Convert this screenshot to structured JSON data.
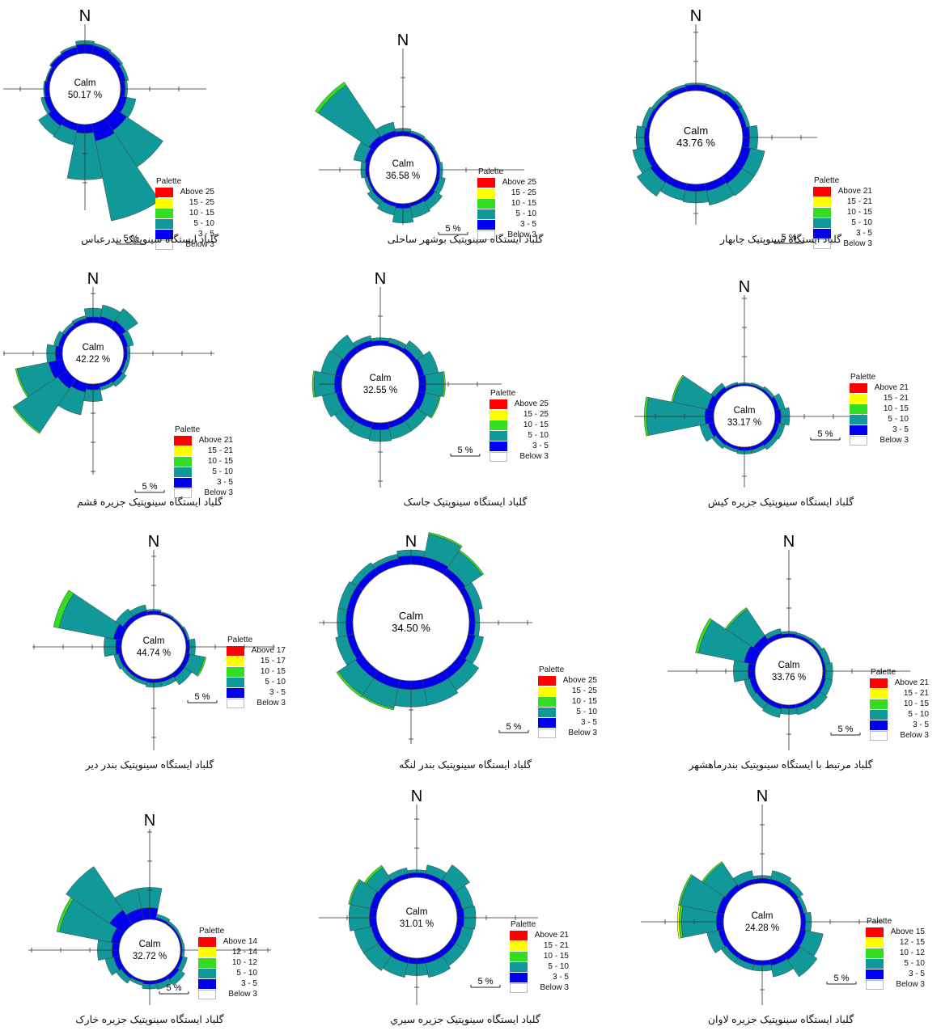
{
  "colors": {
    "above": "#ff0000",
    "band4": "#ffff00",
    "band3": "#33dd22",
    "band2": "#119999",
    "band1": "#0000ee",
    "below": "#ffffff",
    "outline": "#444444"
  },
  "common": {
    "north_label": "N",
    "calm_label": "Calm",
    "palette_label": "Palette",
    "scale_label": "5 %"
  },
  "chart_data": [
    {
      "type": "wind-rose",
      "station": "bandar-abbas",
      "caption": "گلباد ایستگاه سینوپتیک بندرعباس",
      "calm_text": "50.17 %",
      "calm_percent": 50.17,
      "legend": [
        "Above 25",
        "15 - 25",
        "10 - 15",
        "5 - 10",
        "3 - 5",
        "Below 3"
      ],
      "sectors_percent": [
        [
          1.6,
          0.6
        ],
        [
          1.5,
          0.4
        ],
        [
          1.3,
          0.4
        ],
        [
          1.0,
          0.5
        ],
        [
          0.8,
          0.4
        ],
        [
          1.2,
          1.6
        ],
        [
          2.5,
          7.5
        ],
        [
          3.0,
          14.0
        ],
        [
          1.5,
          8.0
        ],
        [
          1.2,
          2.5
        ],
        [
          1.5,
          2.0
        ],
        [
          1.0,
          0.6
        ],
        [
          0.8,
          0.2
        ],
        [
          0.6,
          0.2
        ],
        [
          1.0,
          0.2
        ],
        [
          1.2,
          0.3
        ]
      ]
    },
    {
      "type": "wind-rose",
      "station": "bushehr-coastal",
      "caption": "گلباد ایستگاه سینوپتیک بوشهر ساحلی",
      "calm_text": "36.58 %",
      "calm_percent": 36.58,
      "legend": [
        "Above 25",
        "15 - 25",
        "10 - 15",
        "5 - 10",
        "3 - 5",
        "Below 3"
      ],
      "sectors_percent": [
        [
          0.8,
          0.5
        ],
        [
          0.6,
          0.4
        ],
        [
          0.5,
          0.3
        ],
        [
          0.4,
          0.3
        ],
        [
          0.5,
          0.5
        ],
        [
          0.6,
          1.0
        ],
        [
          0.8,
          1.5
        ],
        [
          0.6,
          2.0
        ],
        [
          0.8,
          2.5
        ],
        [
          0.6,
          1.5
        ],
        [
          0.5,
          1.0
        ],
        [
          0.4,
          0.5
        ],
        [
          0.6,
          0.8
        ],
        [
          0.8,
          2.0
        ],
        [
          1.2,
          10.5,
          0.6
        ],
        [
          1.0,
          1.5
        ]
      ]
    },
    {
      "type": "wind-rose",
      "station": "chabahar",
      "caption": "گلباد ایستگاه سینوپتیک چابهار",
      "calm_text": "43.76 %",
      "calm_percent": 43.76,
      "legend": [
        "Above 21",
        "15 - 21",
        "10 - 15",
        "5 - 10",
        "3 - 5",
        "Below 3"
      ],
      "sectors_percent": [
        [
          1.0,
          0.3
        ],
        [
          0.8,
          0.5
        ],
        [
          1.0,
          0.5
        ],
        [
          0.8,
          0.6
        ],
        [
          1.2,
          1.4
        ],
        [
          1.5,
          2.5
        ],
        [
          1.5,
          2.5
        ],
        [
          1.3,
          2.5
        ],
        [
          1.2,
          2.0
        ],
        [
          1.2,
          1.8
        ],
        [
          1.3,
          2.8
        ],
        [
          1.0,
          2.0
        ],
        [
          0.8,
          1.4
        ],
        [
          0.6,
          0.8
        ],
        [
          0.5,
          0.6
        ],
        [
          0.8,
          0.4
        ]
      ]
    },
    {
      "type": "wind-rose",
      "station": "qeshm-island",
      "caption": "گلباد ایستگاه سینوپتیک جزیره قشم",
      "calm_text": "42.22 %",
      "calm_percent": 42.22,
      "legend": [
        "Above 21",
        "15 - 21",
        "10 - 15",
        "5 - 10",
        "3 - 5",
        "Below 3"
      ],
      "sectors_percent": [
        [
          1.0,
          1.5
        ],
        [
          1.2,
          2.0
        ],
        [
          1.5,
          2.5
        ],
        [
          0.8,
          1.0
        ],
        [
          0.6,
          0.5
        ],
        [
          0.5,
          0.6
        ],
        [
          0.8,
          0.8
        ],
        [
          0.6,
          0.6
        ],
        [
          1.0,
          2.0
        ],
        [
          1.5,
          4.0
        ],
        [
          2.0,
          9.0,
          0.3
        ],
        [
          2.5,
          5.5,
          0.3
        ],
        [
          1.2,
          1.5
        ],
        [
          0.8,
          0.8
        ],
        [
          0.6,
          0.5
        ],
        [
          0.8,
          0.5
        ]
      ]
    },
    {
      "type": "wind-rose",
      "station": "jask",
      "caption": "گلباد ایستگاه سینوپتیک جاسک",
      "calm_text": "32.55 %",
      "calm_percent": 32.55,
      "legend": [
        "Above 25",
        "15 - 25",
        "10 - 15",
        "5 - 10",
        "3 - 5",
        "Below 3"
      ],
      "sectors_percent": [
        [
          0.8,
          0.5
        ],
        [
          0.6,
          0.8
        ],
        [
          0.8,
          1.5
        ],
        [
          1.0,
          2.5
        ],
        [
          1.2,
          3.0,
          0.3
        ],
        [
          1.2,
          2.5,
          0.2
        ],
        [
          1.0,
          2.0
        ],
        [
          1.0,
          2.0
        ],
        [
          1.2,
          2.0
        ],
        [
          1.0,
          2.0
        ],
        [
          1.0,
          1.8
        ],
        [
          1.0,
          2.5
        ],
        [
          1.2,
          3.5,
          0.3
        ],
        [
          1.2,
          2.5
        ],
        [
          1.0,
          2.5
        ],
        [
          1.0,
          0.8
        ]
      ]
    },
    {
      "type": "wind-rose",
      "station": "kish-island",
      "caption": "گلباد ایستگاه سینوپتیک جزیره کیش",
      "calm_text": "33.17 %",
      "calm_percent": 33.17,
      "legend": [
        "Above 21",
        "15 - 21",
        "10 - 15",
        "5 - 10",
        "3 - 5",
        "Below 3"
      ],
      "sectors_percent": [
        [
          0.3,
          0.2
        ],
        [
          0.3,
          0.3
        ],
        [
          0.4,
          0.5
        ],
        [
          0.8,
          1.0
        ],
        [
          1.0,
          1.5
        ],
        [
          0.8,
          1.0
        ],
        [
          0.8,
          0.8
        ],
        [
          0.6,
          0.6
        ],
        [
          0.6,
          0.6
        ],
        [
          0.5,
          0.5
        ],
        [
          0.6,
          0.8
        ],
        [
          1.0,
          1.5
        ],
        [
          1.5,
          10.0,
          0.4
        ],
        [
          1.2,
          6.0,
          0.3
        ],
        [
          0.8,
          0.8
        ],
        [
          0.4,
          0.3
        ]
      ]
    },
    {
      "type": "wind-rose",
      "station": "bandar-deyr",
      "caption": "گلباد ایستگاه سینوپتیک بندر دیر",
      "calm_text": "44.74 %",
      "calm_percent": 44.74,
      "legend": [
        "Above 17",
        "15 - 17",
        "10 - 15",
        "5 - 10",
        "3 - 5",
        "Below 3"
      ],
      "sectors_percent": [
        [
          0.6,
          0.3
        ],
        [
          0.4,
          0.2
        ],
        [
          0.3,
          0.2
        ],
        [
          0.4,
          0.3
        ],
        [
          0.6,
          1.0
        ],
        [
          0.8,
          2.5,
          0.3
        ],
        [
          0.8,
          1.5
        ],
        [
          0.6,
          0.8
        ],
        [
          0.6,
          0.8
        ],
        [
          0.5,
          0.6
        ],
        [
          0.5,
          0.6
        ],
        [
          0.6,
          0.8
        ],
        [
          1.0,
          2.0
        ],
        [
          1.5,
          9.5,
          1.0
        ],
        [
          0.8,
          1.5
        ],
        [
          0.8,
          1.0
        ]
      ]
    },
    {
      "type": "wind-rose",
      "station": "bandar-lengeh",
      "caption": "گلباد ایستگاه سینوپتیک بندر لنگه",
      "calm_text": "34.50 %",
      "calm_percent": 34.5,
      "legend": [
        "Above 25",
        "15 - 25",
        "10 - 15",
        "5 - 10",
        "3 - 5",
        "Below 3"
      ],
      "sectors_percent": [
        [
          1.5,
          1.0
        ],
        [
          1.5,
          4.0,
          0.3
        ],
        [
          1.2,
          3.5,
          0.3
        ],
        [
          1.0,
          1.5
        ],
        [
          1.0,
          0.8
        ],
        [
          1.2,
          1.5
        ],
        [
          1.5,
          2.5
        ],
        [
          1.5,
          3.0
        ],
        [
          1.5,
          3.0
        ],
        [
          1.5,
          3.5,
          0.3
        ],
        [
          1.5,
          3.5,
          0.4
        ],
        [
          1.2,
          2.0
        ],
        [
          1.2,
          1.5
        ],
        [
          1.2,
          1.5
        ],
        [
          1.2,
          1.2
        ],
        [
          1.2,
          0.8
        ]
      ]
    },
    {
      "type": "wind-rose",
      "station": "bandar-mahshahr",
      "caption": "گلباد مرتبط با ایستگاه سینوپتیک بندرماهشهر",
      "calm_text": "33.76 %",
      "calm_percent": 33.76,
      "legend": [
        "Above 21",
        "15 - 21",
        "10 - 15",
        "5 - 10",
        "3 - 5",
        "Below 3"
      ],
      "sectors_percent": [
        [
          0.6,
          0.4
        ],
        [
          0.5,
          0.4
        ],
        [
          0.4,
          0.6
        ],
        [
          0.4,
          1.0
        ],
        [
          0.5,
          1.2
        ],
        [
          0.6,
          1.2
        ],
        [
          0.6,
          1.5
        ],
        [
          0.6,
          1.2
        ],
        [
          0.6,
          1.0
        ],
        [
          0.8,
          1.5
        ],
        [
          0.8,
          1.2
        ],
        [
          1.0,
          1.0
        ],
        [
          1.2,
          2.5
        ],
        [
          2.0,
          8.0,
          0.5
        ],
        [
          1.5,
          5.5,
          0.3
        ],
        [
          0.8,
          0.8
        ]
      ]
    },
    {
      "type": "wind-rose",
      "station": "kharg-island",
      "caption": "گلباد ایستگاه سینوپتیک جزیره خارک",
      "calm_text": "32.72 %",
      "calm_percent": 32.72,
      "legend": [
        "Above 14",
        "12 - 14",
        "10 - 12",
        "5 - 10",
        "3 - 5",
        "Below 3"
      ],
      "sectors_percent": [
        [
          2.0,
          3.5
        ],
        [
          0.4,
          0.6
        ],
        [
          0.3,
          0.4
        ],
        [
          0.3,
          0.3
        ],
        [
          0.3,
          0.4
        ],
        [
          0.5,
          0.8
        ],
        [
          0.8,
          1.2
        ],
        [
          0.6,
          1.0
        ],
        [
          0.6,
          0.8
        ],
        [
          0.4,
          0.5
        ],
        [
          0.6,
          1.0
        ],
        [
          1.0,
          1.5
        ],
        [
          1.2,
          2.5
        ],
        [
          1.5,
          9.0,
          0.5
        ],
        [
          3.0,
          9.0
        ],
        [
          2.0,
          3.5
        ]
      ]
    },
    {
      "type": "wind-rose",
      "station": "sirri-island",
      "caption": "گلباد ایستگاه سینوپتیک جزیره سیري",
      "calm_text": "31.01 %",
      "calm_percent": 31.01,
      "legend": [
        "Above 21",
        "15 - 21",
        "10 - 15",
        "5 - 10",
        "3 - 5",
        "Below 3"
      ],
      "sectors_percent": [
        [
          0.8,
          0.5
        ],
        [
          0.8,
          1.5
        ],
        [
          1.0,
          3.0
        ],
        [
          1.0,
          2.0
        ],
        [
          1.2,
          2.0
        ],
        [
          1.0,
          2.0
        ],
        [
          1.0,
          2.0
        ],
        [
          1.0,
          2.5
        ],
        [
          1.0,
          2.0
        ],
        [
          1.0,
          2.5
        ],
        [
          1.0,
          3.0
        ],
        [
          1.0,
          3.0
        ],
        [
          1.2,
          3.5
        ],
        [
          1.2,
          3.5,
          0.3
        ],
        [
          1.0,
          2.5,
          0.4
        ],
        [
          0.8,
          1.0
        ]
      ]
    },
    {
      "type": "wind-rose",
      "station": "lavan-island",
      "caption": "گلباد ایستگاه سینوپتیک جزیره لاوان",
      "calm_text": "24.28 %",
      "calm_percent": 24.28,
      "legend": [
        "Above 15",
        "12 - 15",
        "10 - 12",
        "5 - 10",
        "3 - 5",
        "Below 3"
      ],
      "sectors_percent": [
        [
          0.8,
          0.5
        ],
        [
          0.8,
          1.5
        ],
        [
          0.8,
          1.0
        ],
        [
          0.6,
          0.6
        ],
        [
          0.8,
          1.0
        ],
        [
          1.0,
          3.0
        ],
        [
          1.2,
          3.5
        ],
        [
          1.0,
          2.0
        ],
        [
          0.8,
          1.0
        ],
        [
          0.8,
          1.0
        ],
        [
          0.8,
          1.0
        ],
        [
          1.0,
          2.0
        ],
        [
          1.2,
          6.0,
          0.4,
          0.3
        ],
        [
          1.2,
          6.5,
          0.3
        ],
        [
          1.0,
          4.5,
          0.3
        ],
        [
          0.8,
          1.5
        ]
      ]
    }
  ]
}
